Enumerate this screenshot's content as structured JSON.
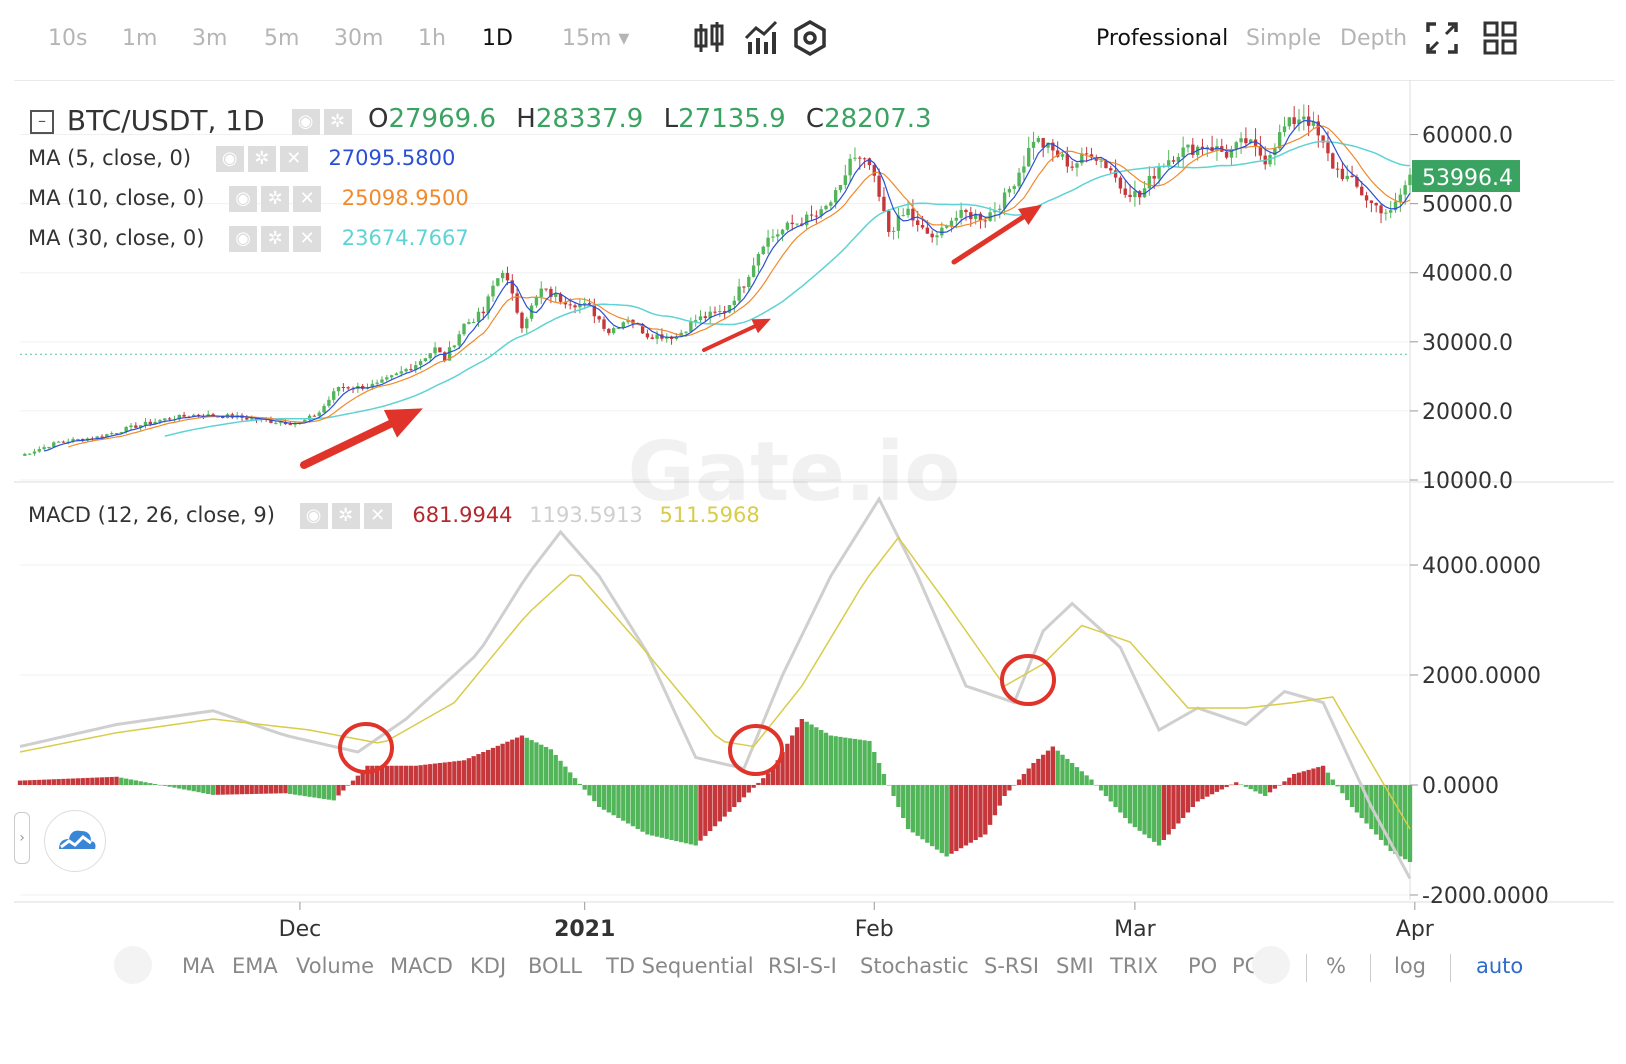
{
  "timeframes": [
    "10s",
    "1m",
    "3m",
    "5m",
    "30m",
    "1h",
    "1D",
    "15m ▾"
  ],
  "active_timeframe_index": 6,
  "toolbar_icons": [
    "candlestick-icon",
    "indicator-icon",
    "settings-hex-icon"
  ],
  "modes": [
    "Professional",
    "Simple",
    "Depth"
  ],
  "active_mode_index": 0,
  "symbol_title": "BTC/USDT, 1D",
  "ohlc": {
    "o_label": "O",
    "o": "27969.6",
    "h_label": "H",
    "h": "28337.9",
    "l_label": "L",
    "l": "27135.9",
    "c_label": "C",
    "c": "28207.3"
  },
  "ma_legend": [
    {
      "label": "MA (5, close, 0)",
      "value": "27095.5800",
      "color": "#2a4fd6"
    },
    {
      "label": "MA (10, close, 0)",
      "value": "25098.9500",
      "color": "#f08a2c"
    },
    {
      "label": "MA (30, close, 0)",
      "value": "23674.7667",
      "color": "#5fd3d3"
    }
  ],
  "macd_legend": {
    "label": "MACD (12, 26, close, 9)",
    "hist": "681.9944",
    "macd": "1193.5913",
    "signal": "511.5968",
    "hist_color": "#b4282d",
    "macd_color": "#cfcfcf",
    "signal_color": "#d8cc4a"
  },
  "price_axis": [
    "60000.0",
    "50000.0",
    "40000.0",
    "30000.0",
    "20000.0",
    "10000.0"
  ],
  "current_price_tag": "53996.4",
  "macd_axis": [
    "4000.0000",
    "2000.0000",
    "0.0000",
    "-2000.0000"
  ],
  "x_axis": [
    {
      "label": "Dec",
      "bold": false
    },
    {
      "label": "2021",
      "bold": true
    },
    {
      "label": "Feb",
      "bold": false
    },
    {
      "label": "Mar",
      "bold": false
    },
    {
      "label": "Apr",
      "bold": false
    }
  ],
  "watermark": "Gate.io",
  "indicators": [
    "MA",
    "EMA",
    "Volume",
    "MACD",
    "KDJ",
    "BOLL",
    "TD Sequential",
    "RSI-S-I",
    "Stochastic",
    "S-RSI",
    "SMI",
    "TRIX",
    "PO",
    "PC"
  ],
  "scale_options": [
    "%",
    "log",
    "auto"
  ],
  "colors": {
    "up": "#52b559",
    "down": "#c5373b",
    "accent": "#2d6ccc",
    "price_tag": "#3aa361",
    "annotation": "#e0332a"
  },
  "chart_data": {
    "type": "candlestick",
    "symbol": "BTC/USDT",
    "interval": "1D",
    "x_ticks": [
      "Dec",
      "2021",
      "Feb",
      "Mar",
      "Apr"
    ],
    "y_range": [
      10000,
      65000
    ],
    "close_path": [
      [
        0,
        13500
      ],
      [
        8,
        15500
      ],
      [
        16,
        16200
      ],
      [
        24,
        17800
      ],
      [
        30,
        18800
      ],
      [
        36,
        19400
      ],
      [
        44,
        19200
      ],
      [
        52,
        18500
      ],
      [
        58,
        18200
      ],
      [
        62,
        19800
      ],
      [
        66,
        23500
      ],
      [
        70,
        23400
      ],
      [
        74,
        23800
      ],
      [
        78,
        25200
      ],
      [
        82,
        26800
      ],
      [
        86,
        29000
      ],
      [
        88,
        27500
      ],
      [
        92,
        32500
      ],
      [
        96,
        34200
      ],
      [
        98,
        38000
      ],
      [
        100,
        40500
      ],
      [
        104,
        32500
      ],
      [
        108,
        37500
      ],
      [
        112,
        36200
      ],
      [
        118,
        35000
      ],
      [
        122,
        31500
      ],
      [
        126,
        33500
      ],
      [
        130,
        31000
      ],
      [
        136,
        30800
      ],
      [
        140,
        33200
      ],
      [
        146,
        34500
      ],
      [
        150,
        38500
      ],
      [
        154,
        44500
      ],
      [
        160,
        47000
      ],
      [
        166,
        48500
      ],
      [
        170,
        52000
      ],
      [
        172,
        56500
      ],
      [
        176,
        55500
      ],
      [
        180,
        46000
      ],
      [
        184,
        49000
      ],
      [
        186,
        46500
      ],
      [
        190,
        44800
      ],
      [
        192,
        47500
      ],
      [
        196,
        48500
      ],
      [
        200,
        48000
      ],
      [
        204,
        50800
      ],
      [
        208,
        56000
      ],
      [
        210,
        59500
      ],
      [
        214,
        57500
      ],
      [
        218,
        55500
      ],
      [
        222,
        57500
      ],
      [
        226,
        55000
      ],
      [
        228,
        52500
      ],
      [
        232,
        51000
      ],
      [
        236,
        55500
      ],
      [
        240,
        57500
      ],
      [
        246,
        58500
      ],
      [
        250,
        57200
      ],
      [
        254,
        59000
      ],
      [
        258,
        56500
      ],
      [
        262,
        61000
      ],
      [
        266,
        63000
      ],
      [
        268,
        61000
      ],
      [
        272,
        55500
      ],
      [
        276,
        53000
      ],
      [
        280,
        50000
      ],
      [
        284,
        48500
      ],
      [
        288,
        53996.4
      ]
    ],
    "macd_panel": {
      "y_range": [
        -2000,
        5000
      ],
      "macd_line": [
        [
          0,
          700
        ],
        [
          20,
          1100
        ],
        [
          40,
          1350
        ],
        [
          55,
          900
        ],
        [
          70,
          600
        ],
        [
          80,
          1200
        ],
        [
          95,
          2400
        ],
        [
          105,
          3800
        ],
        [
          112,
          4600
        ],
        [
          120,
          3800
        ],
        [
          130,
          2400
        ],
        [
          140,
          500
        ],
        [
          150,
          300
        ],
        [
          158,
          2000
        ],
        [
          168,
          3800
        ],
        [
          178,
          5200
        ],
        [
          186,
          3800
        ],
        [
          196,
          1800
        ],
        [
          206,
          1500
        ],
        [
          212,
          2800
        ],
        [
          218,
          3300
        ],
        [
          228,
          2500
        ],
        [
          236,
          1000
        ],
        [
          244,
          1400
        ],
        [
          254,
          1100
        ],
        [
          262,
          1700
        ],
        [
          270,
          1500
        ],
        [
          280,
          -400
        ],
        [
          288,
          -1700
        ]
      ],
      "signal_line": [
        [
          0,
          600
        ],
        [
          20,
          950
        ],
        [
          40,
          1200
        ],
        [
          60,
          1000
        ],
        [
          75,
          750
        ],
        [
          90,
          1500
        ],
        [
          105,
          3100
        ],
        [
          115,
          3900
        ],
        [
          128,
          2600
        ],
        [
          145,
          800
        ],
        [
          152,
          700
        ],
        [
          162,
          1800
        ],
        [
          175,
          3700
        ],
        [
          182,
          4500
        ],
        [
          192,
          3300
        ],
        [
          204,
          1800
        ],
        [
          212,
          2200
        ],
        [
          220,
          2900
        ],
        [
          230,
          2600
        ],
        [
          242,
          1400
        ],
        [
          254,
          1400
        ],
        [
          264,
          1500
        ],
        [
          272,
          1600
        ],
        [
          288,
          -800
        ]
      ],
      "histogram": [
        [
          0,
          80
        ],
        [
          20,
          150
        ],
        [
          40,
          -180
        ],
        [
          55,
          -150
        ],
        [
          65,
          -280
        ],
        [
          72,
          350
        ],
        [
          82,
          350
        ],
        [
          92,
          450
        ],
        [
          104,
          900
        ],
        [
          110,
          650
        ],
        [
          120,
          -400
        ],
        [
          130,
          -900
        ],
        [
          140,
          -1100
        ],
        [
          148,
          -400
        ],
        [
          156,
          300
        ],
        [
          162,
          1200
        ],
        [
          168,
          900
        ],
        [
          176,
          800
        ],
        [
          184,
          -800
        ],
        [
          192,
          -1300
        ],
        [
          200,
          -900
        ],
        [
          204,
          -200
        ],
        [
          210,
          400
        ],
        [
          214,
          700
        ],
        [
          222,
          100
        ],
        [
          230,
          -700
        ],
        [
          236,
          -1100
        ],
        [
          244,
          -300
        ],
        [
          252,
          50
        ],
        [
          258,
          -200
        ],
        [
          264,
          200
        ],
        [
          270,
          350
        ],
        [
          276,
          -400
        ],
        [
          284,
          -1200
        ],
        [
          288,
          -1400
        ]
      ]
    }
  }
}
